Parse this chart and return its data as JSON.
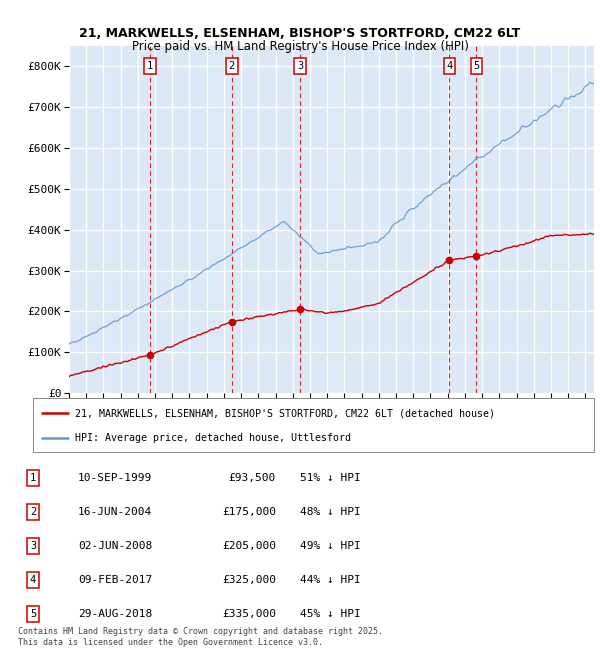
{
  "title_line1": "21, MARKWELLS, ELSENHAM, BISHOP'S STORTFORD, CM22 6LT",
  "title_line2": "Price paid vs. HM Land Registry's House Price Index (HPI)",
  "ylim": [
    0,
    850000
  ],
  "yticks": [
    0,
    100000,
    200000,
    300000,
    400000,
    500000,
    600000,
    700000,
    800000
  ],
  "ytick_labels": [
    "£0",
    "£100K",
    "£200K",
    "£300K",
    "£400K",
    "£500K",
    "£600K",
    "£700K",
    "£800K"
  ],
  "background_color": "#dce8f5",
  "grid_color": "#ffffff",
  "red_color": "#cc0000",
  "blue_color": "#6699cc",
  "transaction_markers": [
    {
      "num": 1,
      "year": 1999.71,
      "price": 93500,
      "label": "1"
    },
    {
      "num": 2,
      "year": 2004.46,
      "price": 175000,
      "label": "2"
    },
    {
      "num": 3,
      "year": 2008.42,
      "price": 205000,
      "label": "3"
    },
    {
      "num": 4,
      "year": 2017.1,
      "price": 325000,
      "label": "4"
    },
    {
      "num": 5,
      "year": 2018.66,
      "price": 335000,
      "label": "5"
    }
  ],
  "legend_red": "21, MARKWELLS, ELSENHAM, BISHOP'S STORTFORD, CM22 6LT (detached house)",
  "legend_blue": "HPI: Average price, detached house, Uttlesford",
  "table_rows": [
    {
      "num": "1",
      "date": "10-SEP-1999",
      "price": "£93,500",
      "hpi": "51% ↓ HPI"
    },
    {
      "num": "2",
      "date": "16-JUN-2004",
      "price": "£175,000",
      "hpi": "48% ↓ HPI"
    },
    {
      "num": "3",
      "date": "02-JUN-2008",
      "price": "£205,000",
      "hpi": "49% ↓ HPI"
    },
    {
      "num": "4",
      "date": "09-FEB-2017",
      "price": "£325,000",
      "hpi": "44% ↓ HPI"
    },
    {
      "num": "5",
      "date": "29-AUG-2018",
      "price": "£335,000",
      "hpi": "45% ↓ HPI"
    }
  ],
  "footnote": "Contains HM Land Registry data © Crown copyright and database right 2025.\nThis data is licensed under the Open Government Licence v3.0.",
  "xmin": 1995.0,
  "xmax": 2025.5
}
